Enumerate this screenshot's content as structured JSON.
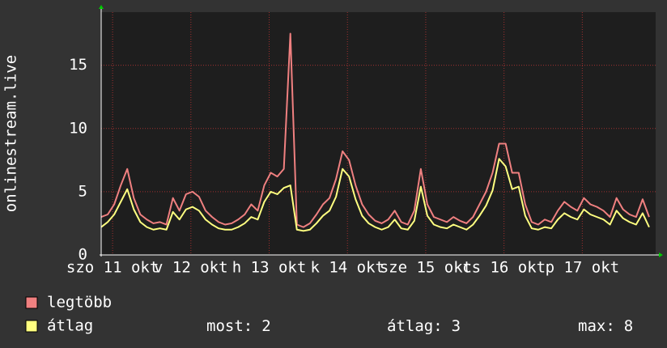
{
  "chart_data": {
    "type": "line",
    "ylabel": "onlinestream.live",
    "x": [
      0,
      2,
      4,
      6,
      8,
      10,
      12,
      14,
      16,
      18,
      20,
      22,
      24,
      26,
      28,
      30,
      32,
      34,
      36,
      38,
      40,
      42,
      44,
      46,
      48,
      50,
      52,
      54,
      56,
      58,
      60,
      62,
      64,
      66,
      68,
      70,
      72,
      74,
      76,
      78,
      80,
      82,
      84,
      86,
      88,
      90,
      92,
      94,
      96,
      98,
      100,
      102,
      104,
      106,
      108,
      110,
      112,
      114,
      116,
      118,
      120,
      122,
      124,
      126,
      128,
      130,
      132,
      134,
      136,
      138,
      140,
      142,
      144,
      146,
      148,
      150,
      152,
      154,
      156,
      158,
      160,
      162,
      164,
      166,
      168
    ],
    "xlim": [
      0,
      170
    ],
    "xticks": [
      {
        "value": 3.5,
        "label": "szo 11 okt"
      },
      {
        "value": 27.5,
        "label": "v 12 okt"
      },
      {
        "value": 51.5,
        "label": "h 13 okt"
      },
      {
        "value": 75.5,
        "label": "k 14 okt"
      },
      {
        "value": 99.5,
        "label": "sze 15 okt"
      },
      {
        "value": 123.5,
        "label": "cs 16 okt"
      },
      {
        "value": 147.5,
        "label": "p 17 okt"
      }
    ],
    "ylim": [
      0,
      19.2
    ],
    "yticks": [
      0,
      5,
      10,
      15
    ],
    "grid": true,
    "series": [
      {
        "name": "legtöbb",
        "color": "#f08080",
        "values": [
          3.0,
          3.2,
          4.0,
          5.5,
          6.8,
          4.5,
          3.2,
          2.8,
          2.5,
          2.6,
          2.4,
          4.5,
          3.5,
          4.8,
          5.0,
          4.6,
          3.5,
          3.0,
          2.6,
          2.4,
          2.5,
          2.8,
          3.2,
          4.0,
          3.5,
          5.5,
          6.5,
          6.2,
          6.8,
          17.5,
          2.4,
          2.2,
          2.5,
          3.2,
          4.0,
          4.5,
          6.0,
          8.2,
          7.5,
          5.5,
          4.0,
          3.2,
          2.7,
          2.5,
          2.8,
          3.5,
          2.6,
          2.4,
          3.5,
          6.8,
          4.0,
          3.0,
          2.8,
          2.6,
          3.0,
          2.7,
          2.5,
          3.0,
          4.0,
          5.0,
          6.5,
          8.8,
          8.8,
          6.5,
          6.5,
          4.0,
          2.6,
          2.4,
          2.8,
          2.6,
          3.5,
          4.2,
          3.8,
          3.5,
          4.5,
          4.0,
          3.8,
          3.5,
          3.0,
          4.5,
          3.6,
          3.2,
          3.0,
          4.4,
          3.0
        ]
      },
      {
        "name": "átlag",
        "color": "#ffff80",
        "values": [
          2.2,
          2.6,
          3.2,
          4.2,
          5.2,
          3.6,
          2.6,
          2.2,
          2.0,
          2.1,
          2.0,
          3.4,
          2.8,
          3.6,
          3.8,
          3.5,
          2.8,
          2.4,
          2.1,
          2.0,
          2.0,
          2.2,
          2.5,
          3.0,
          2.8,
          4.2,
          5.0,
          4.8,
          5.3,
          5.5,
          2.0,
          1.9,
          2.0,
          2.5,
          3.1,
          3.5,
          4.6,
          6.8,
          6.2,
          4.4,
          3.1,
          2.5,
          2.2,
          2.0,
          2.2,
          2.8,
          2.1,
          2.0,
          2.7,
          5.4,
          3.1,
          2.4,
          2.2,
          2.1,
          2.4,
          2.2,
          2.0,
          2.4,
          3.1,
          3.9,
          5.1,
          7.6,
          7.0,
          5.2,
          5.4,
          3.1,
          2.1,
          2.0,
          2.2,
          2.1,
          2.8,
          3.3,
          3.0,
          2.8,
          3.6,
          3.2,
          3.0,
          2.8,
          2.4,
          3.5,
          2.9,
          2.6,
          2.4,
          3.3,
          2.2
        ]
      }
    ],
    "summary": [
      {
        "label": "most:",
        "value": 2
      },
      {
        "label": "átlag:",
        "value": 3
      },
      {
        "label": "max:",
        "value": 8
      }
    ]
  }
}
